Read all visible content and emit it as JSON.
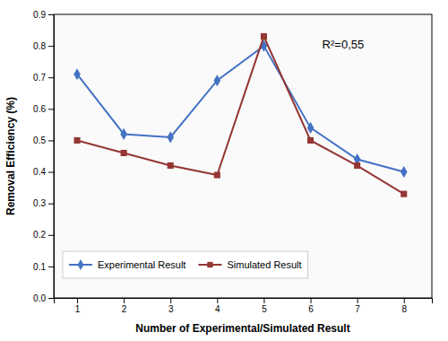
{
  "chart_data": {
    "type": "line",
    "x": [
      1,
      2,
      3,
      4,
      5,
      6,
      7,
      8
    ],
    "series": [
      {
        "name": "Experimental Result",
        "color": "#4472C4",
        "marker": "diamond",
        "values": [
          0.71,
          0.52,
          0.51,
          0.69,
          0.8,
          0.54,
          0.44,
          0.4
        ]
      },
      {
        "name": "Simulated Result",
        "color": "#943634",
        "marker": "square",
        "values": [
          0.5,
          0.46,
          0.42,
          0.39,
          0.83,
          0.5,
          0.42,
          0.33
        ]
      }
    ],
    "xlabel": "Number of Experimental/Simulated Result",
    "ylabel": "Removal Efficiency (%)",
    "xlim": [
      0.5,
      8.6
    ],
    "xticks": [
      1,
      2,
      3,
      4,
      5,
      6,
      7,
      8
    ],
    "ylim": [
      0,
      0.9
    ],
    "yticks": [
      {
        "value": 0,
        "label": "0.0"
      },
      0.1,
      0.2,
      0.3,
      0.4,
      0.5,
      0.6,
      0.7,
      0.8,
      0.9
    ],
    "annotation": "R²=0,55",
    "legend": "lower left",
    "grid": false
  }
}
